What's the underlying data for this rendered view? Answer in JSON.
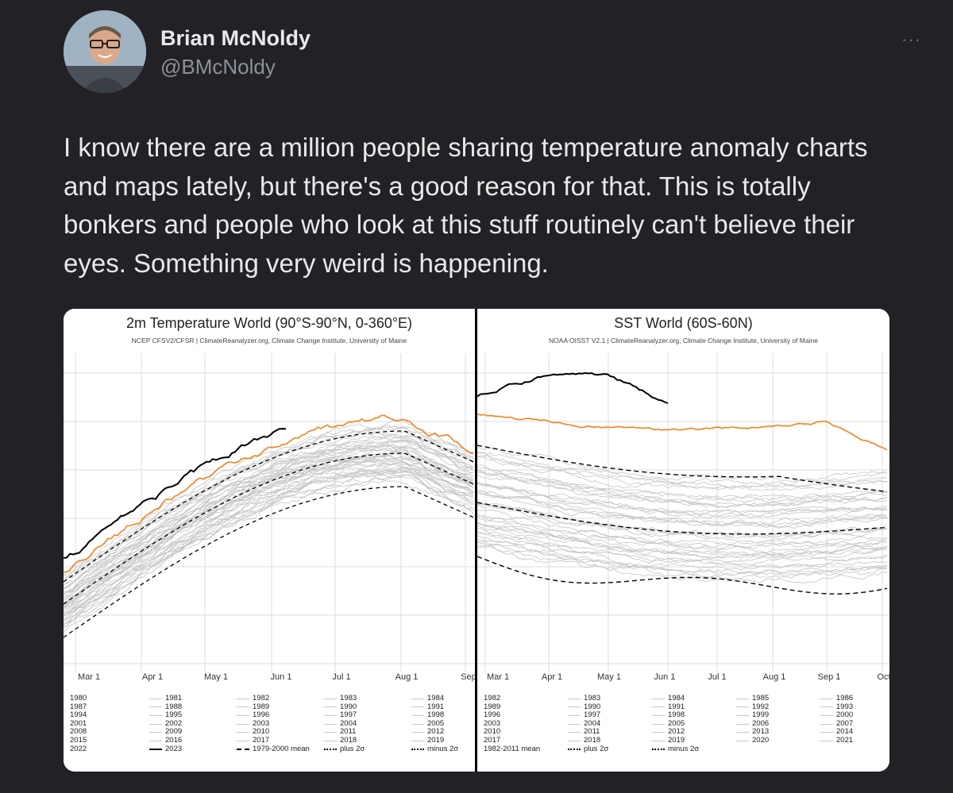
{
  "tweet": {
    "author_name": "Brian McNoldy",
    "author_handle": "@BMcNoldy",
    "more_label": "···",
    "text": "I know there are a million people sharing temperature anomaly charts and maps lately, but there's a good reason for that. This is totally bonkers and people who look at this stuff routinely can't believe their eyes. Something very weird is happening."
  },
  "charts": {
    "left": {
      "title": "2m Temperature World (90°S-90°N, 0-360°E)",
      "subtitle": "NCEP CFSV2/CFSR | ClimateReanalyzer.org, Climate Change Institute, University of Maine",
      "x_ticks": [
        "Mar 1",
        "Apr 1",
        "May 1",
        "Jun 1",
        "Jul 1",
        "Aug 1",
        "Sep"
      ],
      "legend": [
        [
          "1980",
          "1981",
          "1982",
          "1983",
          "1984"
        ],
        [
          "1987",
          "1988",
          "1989",
          "1990",
          "1991"
        ],
        [
          "1994",
          "1995",
          "1996",
          "1997",
          "1998"
        ],
        [
          "2001",
          "2002",
          "2003",
          "2004",
          "2005"
        ],
        [
          "2008",
          "2009",
          "2010",
          "2011",
          "2012"
        ],
        [
          "2015",
          "2016",
          "2017",
          "2018",
          "2019"
        ],
        [
          "2022",
          "2023",
          "1979-2000 mean",
          "plus 2σ",
          "minus 2σ"
        ]
      ]
    },
    "right": {
      "title": "SST World (60S-60N)",
      "subtitle": "NOAA OISST V2.1 | ClimateReanalyzer.org, Climate Change Institute, University of Maine",
      "x_ticks": [
        "Mar 1",
        "Apr 1",
        "May 1",
        "Jun 1",
        "Jul 1",
        "Aug 1",
        "Sep 1",
        "Oct"
      ],
      "legend": [
        [
          "1982",
          "1983",
          "1984",
          "1985",
          "1986"
        ],
        [
          "1989",
          "1990",
          "1991",
          "1992",
          "1993"
        ],
        [
          "1996",
          "1997",
          "1998",
          "1999",
          "2000"
        ],
        [
          "2003",
          "2004",
          "2005",
          "2006",
          "2007"
        ],
        [
          "2010",
          "2011",
          "2012",
          "2013",
          "2014"
        ],
        [
          "2017",
          "2018",
          "2019",
          "2020",
          "2021"
        ],
        [
          "1982-2011 mean",
          "plus 2σ",
          "minus 2σ",
          "",
          ""
        ]
      ]
    }
  },
  "colors": {
    "orange": "#f0821c",
    "gray": "#c4c4c4",
    "black": "#000000"
  }
}
